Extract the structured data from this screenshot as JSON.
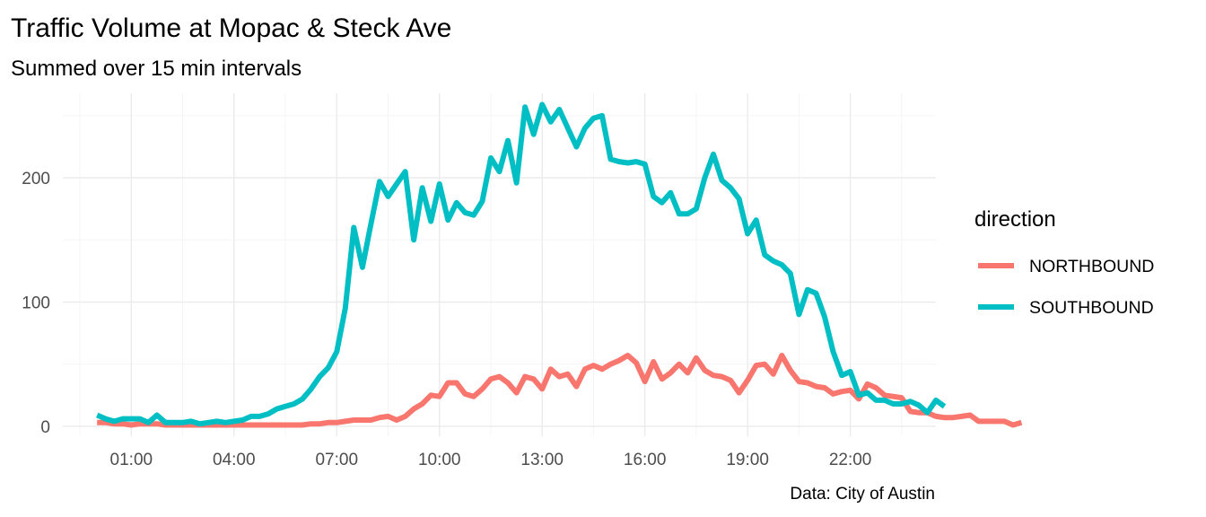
{
  "chart_data": {
    "type": "line",
    "title": "Traffic Volume at Mopac & Steck Ave",
    "subtitle": "Summed over 15 min intervals",
    "caption": "Data: City of Austin",
    "xlabel": "",
    "ylabel": "",
    "x_unit": "time of day (HH:MM)",
    "x_range": [
      "00:00",
      "23:45"
    ],
    "x_axis_limits": [
      "-01:00",
      "24:30"
    ],
    "x_ticks": [
      "01:00",
      "04:00",
      "07:00",
      "10:00",
      "13:00",
      "16:00",
      "19:00",
      "22:00"
    ],
    "ylim": [
      -8,
      268
    ],
    "y_ticks": [
      0,
      100,
      200
    ],
    "grid": true,
    "legend": {
      "title": "direction",
      "position": "right"
    },
    "series": [
      {
        "name": "NORTHBOUND",
        "color": "#F8766D",
        "values": [
          3,
          3,
          2,
          2,
          1,
          2,
          2,
          2,
          1,
          1,
          1,
          1,
          1,
          1,
          1,
          1,
          1,
          1,
          1,
          1,
          1,
          1,
          1,
          1,
          1,
          2,
          2,
          3,
          3,
          4,
          5,
          5,
          5,
          7,
          8,
          5,
          8,
          14,
          18,
          25,
          24,
          35,
          35,
          26,
          24,
          30,
          38,
          40,
          35,
          27,
          40,
          38,
          30,
          46,
          40,
          42,
          32,
          46,
          49,
          46,
          50,
          53,
          57,
          51,
          36,
          52,
          38,
          43,
          50,
          43,
          55,
          45,
          41,
          40,
          37,
          27,
          37,
          49,
          50,
          42,
          57,
          45,
          36,
          35,
          32,
          31,
          26,
          28,
          29,
          22,
          34,
          31,
          25,
          24,
          23,
          12,
          11,
          11,
          8,
          7,
          7,
          8,
          9,
          4,
          4,
          4,
          4,
          1,
          3
        ]
      },
      {
        "name": "SOUTHBOUND",
        "color": "#00BFC4",
        "values": [
          9,
          6,
          4,
          6,
          6,
          6,
          3,
          9,
          3,
          3,
          3,
          4,
          2,
          3,
          4,
          3,
          4,
          5,
          8,
          8,
          10,
          14,
          16,
          18,
          22,
          30,
          40,
          47,
          60,
          95,
          160,
          128,
          163,
          197,
          185,
          195,
          205,
          150,
          192,
          165,
          195,
          166,
          180,
          172,
          170,
          181,
          216,
          205,
          230,
          196,
          257,
          235,
          259,
          245,
          255,
          240,
          225,
          240,
          248,
          250,
          215,
          213,
          212,
          213,
          211,
          185,
          180,
          188,
          171,
          171,
          175,
          200,
          219,
          198,
          192,
          183,
          155,
          166,
          138,
          133,
          130,
          123,
          90,
          110,
          107,
          88,
          60,
          41,
          44,
          25,
          27,
          21,
          21,
          18,
          18,
          20,
          17,
          11,
          21,
          16
        ]
      }
    ]
  }
}
